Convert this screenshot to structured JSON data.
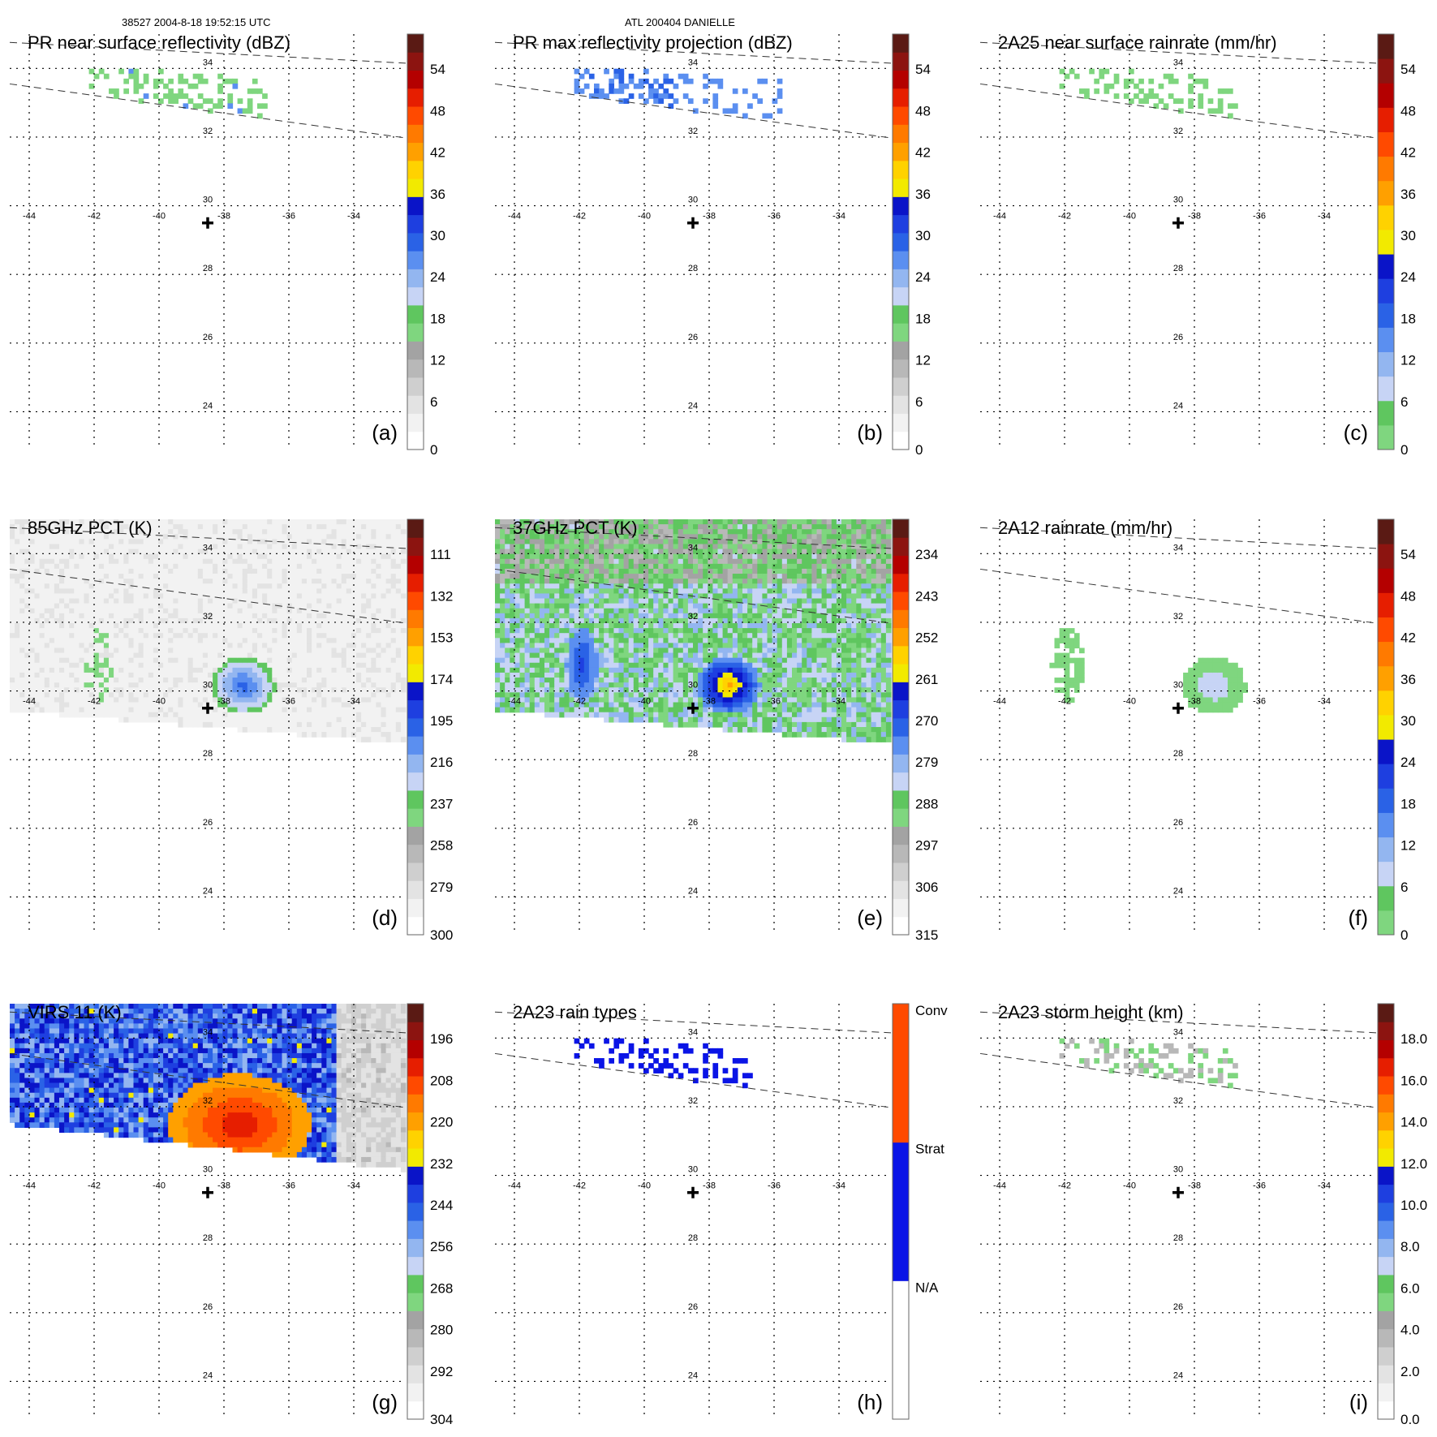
{
  "header": {
    "left": "38527 2004-8-18 19:52:15 UTC",
    "center": "ATL 200404 DANIELLE"
  },
  "chart_data": {
    "type": "heatmap",
    "description_grid": {
      "lon_ticks": [
        "-44",
        "-42",
        "-40",
        "-38",
        "-36",
        "-34"
      ],
      "lat_ticks": [
        "34",
        "32",
        "30",
        "28",
        "26",
        "24"
      ],
      "lon_range": [
        -44.6,
        -32.4
      ],
      "lat_range": [
        22.9,
        35.0
      ],
      "storm_center": [
        -38.5,
        29.5
      ]
    },
    "panels": [
      {
        "id": "a",
        "label": "(a)",
        "title": "PR near surface reflectivity (dBZ)",
        "colorbar": {
          "ticks": [
            "54",
            "48",
            "42",
            "36",
            "30",
            "24",
            "18",
            "12",
            "6",
            "0"
          ],
          "colors": [
            "#ffffff",
            "#f2f2f2",
            "#e3e3e3",
            "#cfcfcf",
            "#b8b8b8",
            "#a3a3a3",
            "#7fd67f",
            "#5fc65f",
            "#c7d4f5",
            "#93b6f0",
            "#5b8ff0",
            "#2a62e6",
            "#1e3fe0",
            "#0a14c8",
            "#f2ea00",
            "#ffd200",
            "#ffa000",
            "#ff7a00",
            "#ff4a00",
            "#e61e00",
            "#b40000",
            "#8c1410",
            "#5a1a14"
          ]
        },
        "swath": "pr",
        "field": "pr_sparse"
      },
      {
        "id": "b",
        "label": "(b)",
        "title": "PR max reflectivity projection (dBZ)",
        "colorbar": {
          "ticks": [
            "54",
            "48",
            "42",
            "36",
            "30",
            "24",
            "18",
            "12",
            "6",
            "0"
          ],
          "colors": [
            "#ffffff",
            "#f2f2f2",
            "#e3e3e3",
            "#cfcfcf",
            "#b8b8b8",
            "#a3a3a3",
            "#7fd67f",
            "#5fc65f",
            "#c7d4f5",
            "#93b6f0",
            "#5b8ff0",
            "#2a62e6",
            "#1e3fe0",
            "#0a14c8",
            "#f2ea00",
            "#ffd200",
            "#ffa000",
            "#ff7a00",
            "#ff4a00",
            "#e61e00",
            "#b40000",
            "#8c1410",
            "#5a1a14"
          ]
        },
        "swath": "pr",
        "field": "pr_max"
      },
      {
        "id": "c",
        "label": "(c)",
        "title": "2A25 near surface rainrate (mm/hr)",
        "colorbar": {
          "ticks": [
            "54",
            "48",
            "42",
            "36",
            "30",
            "24",
            "18",
            "12",
            "6",
            "0"
          ],
          "colors": [
            "#7fd67f",
            "#5fc65f",
            "#c7d4f5",
            "#93b6f0",
            "#5b8ff0",
            "#2a62e6",
            "#1e3fe0",
            "#0a14c8",
            "#f2ea00",
            "#ffd200",
            "#ffa000",
            "#ff7a00",
            "#ff4a00",
            "#e61e00",
            "#b40000",
            "#8c1410",
            "#5a1a14"
          ]
        },
        "swath": "pr",
        "field": "pr_rain"
      },
      {
        "id": "d",
        "label": "(d)",
        "title": "85GHz PCT (K)",
        "colorbar": {
          "ticks": [
            "111",
            "132",
            "153",
            "174",
            "195",
            "216",
            "237",
            "258",
            "279",
            "300"
          ],
          "colors": [
            "#ffffff",
            "#f2f2f2",
            "#e3e3e3",
            "#cfcfcf",
            "#b8b8b8",
            "#a3a3a3",
            "#7fd67f",
            "#5fc65f",
            "#c7d4f5",
            "#93b6f0",
            "#5b8ff0",
            "#2a62e6",
            "#1e3fe0",
            "#0a14c8",
            "#f2ea00",
            "#ffd200",
            "#ffa000",
            "#ff7a00",
            "#ff4a00",
            "#e61e00",
            "#b40000",
            "#8c1410",
            "#5a1a14"
          ]
        },
        "swath": "tmi",
        "field": "pct85"
      },
      {
        "id": "e",
        "label": "(e)",
        "title": "37GHz PCT (K)",
        "colorbar": {
          "ticks": [
            "234",
            "243",
            "252",
            "261",
            "270",
            "279",
            "288",
            "297",
            "306",
            "315"
          ],
          "colors": [
            "#ffffff",
            "#f2f2f2",
            "#e3e3e3",
            "#cfcfcf",
            "#b8b8b8",
            "#a3a3a3",
            "#7fd67f",
            "#5fc65f",
            "#c7d4f5",
            "#93b6f0",
            "#5b8ff0",
            "#2a62e6",
            "#1e3fe0",
            "#0a14c8",
            "#f2ea00",
            "#ffd200",
            "#ffa000",
            "#ff7a00",
            "#ff4a00",
            "#e61e00",
            "#b40000",
            "#8c1410",
            "#5a1a14"
          ]
        },
        "swath": "tmi",
        "field": "pct37"
      },
      {
        "id": "f",
        "label": "(f)",
        "title": "2A12 rainrate (mm/hr)",
        "colorbar": {
          "ticks": [
            "54",
            "48",
            "42",
            "36",
            "30",
            "24",
            "18",
            "12",
            "6",
            "0"
          ],
          "colors": [
            "#7fd67f",
            "#5fc65f",
            "#c7d4f5",
            "#93b6f0",
            "#5b8ff0",
            "#2a62e6",
            "#1e3fe0",
            "#0a14c8",
            "#f2ea00",
            "#ffd200",
            "#ffa000",
            "#ff7a00",
            "#ff4a00",
            "#e61e00",
            "#b40000",
            "#8c1410",
            "#5a1a14"
          ]
        },
        "swath": "none",
        "field": "rain12"
      },
      {
        "id": "g",
        "label": "(g)",
        "title": "VIRS 11 (K)",
        "colorbar": {
          "ticks": [
            "196",
            "208",
            "220",
            "232",
            "244",
            "256",
            "268",
            "280",
            "292",
            "304"
          ],
          "colors": [
            "#ffffff",
            "#f2f2f2",
            "#e3e3e3",
            "#cfcfcf",
            "#b8b8b8",
            "#a3a3a3",
            "#7fd67f",
            "#5fc65f",
            "#c7d4f5",
            "#93b6f0",
            "#5b8ff0",
            "#2a62e6",
            "#1e3fe0",
            "#0a14c8",
            "#f2ea00",
            "#ffd200",
            "#ffa000",
            "#ff7a00",
            "#ff4a00",
            "#e61e00",
            "#b40000",
            "#8c1410",
            "#5a1a14"
          ]
        },
        "swath": "virs",
        "field": "virs"
      },
      {
        "id": "h",
        "label": "(h)",
        "title": "2A23 rain types",
        "colorbar": {
          "ticks": [
            "Conv",
            "Strat",
            "N/A"
          ],
          "categorical": true,
          "colors": [
            "#ffffff",
            "#0a14e6",
            "#ff4a00"
          ]
        },
        "swath": "pr",
        "field": "raintype"
      },
      {
        "id": "i",
        "label": "(i)",
        "title": "2A23 storm height (km)",
        "colorbar": {
          "ticks": [
            "18.0",
            "16.0",
            "14.0",
            "12.0",
            "10.0",
            "8.0",
            "6.0",
            "4.0",
            "2.0",
            "0.0"
          ],
          "colors": [
            "#ffffff",
            "#f2f2f2",
            "#e3e3e3",
            "#cfcfcf",
            "#b8b8b8",
            "#a3a3a3",
            "#7fd67f",
            "#5fc65f",
            "#c7d4f5",
            "#93b6f0",
            "#5b8ff0",
            "#2a62e6",
            "#1e3fe0",
            "#0a14c8",
            "#f2ea00",
            "#ffd200",
            "#ffa000",
            "#ff7a00",
            "#ff4a00",
            "#e61e00",
            "#b40000",
            "#8c1410",
            "#5a1a14"
          ]
        },
        "swath": "pr",
        "field": "height"
      }
    ]
  }
}
